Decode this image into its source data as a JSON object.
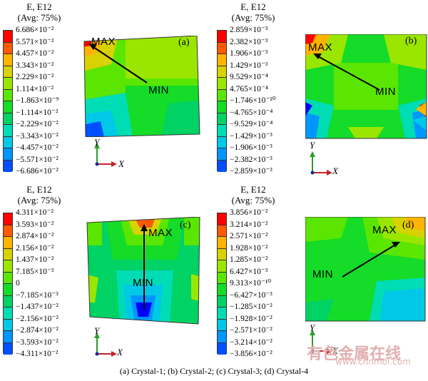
{
  "panels": [
    {
      "id": "a",
      "title_line1": "E, E12",
      "title_line2": "(Avg: 75%)",
      "ticks": [
        "6.686×10⁻²",
        "5.571×10⁻²",
        "4.457×10⁻²",
        "3.343×10⁻²",
        "2.229×10⁻²",
        "1.114×10⁻²",
        "−1.863×10⁻⁹",
        "−1.114×10⁻²",
        "−2.229×10⁻²",
        "−3.343×10⁻²",
        "−4.457×10⁻²",
        "−5.571×10⁻²",
        "−6.686×10⁻²"
      ],
      "max_label": "MAX",
      "min_label": "MIN",
      "panel_label": "(a)",
      "axis_y": "Y",
      "axis_x": "X"
    },
    {
      "id": "b",
      "title_line1": "E, E12",
      "title_line2": "(Avg: 75%)",
      "ticks": [
        "2.859×10⁻³",
        "2.382×10⁻³",
        "1.906×10⁻³",
        "1.429×10⁻³",
        "9.529×10⁻⁴",
        "4.765×10⁻⁴",
        "−1.746×10⁻¹⁰",
        "−4.765×10⁻⁴",
        "−9.529×10⁻⁴",
        "−1.429×10⁻³",
        "−1.906×10⁻³",
        "−2.382×10⁻³",
        "−2.859×10⁻³"
      ],
      "max_label": "MAX",
      "min_label": "MIN",
      "panel_label": "(b)",
      "axis_y": "Y",
      "axis_x": "X"
    },
    {
      "id": "c",
      "title_line1": "E, E12",
      "title_line2": "(Avg: 75%)",
      "ticks": [
        "4.311×10⁻²",
        "3.593×10⁻²",
        "2.874×10⁻²",
        "2.156×10⁻²",
        "1.437×10⁻²",
        "7.185×10⁻³",
        "0",
        "−7.185×10⁻³",
        "−1.437×10⁻²",
        "−2.156×10⁻²",
        "−2.874×10⁻²",
        "−3.593×10⁻²",
        "−4.311×10⁻²"
      ],
      "max_label": "MAX",
      "min_label": "MIN",
      "panel_label": "(c)",
      "axis_y": "Y",
      "axis_x": "X"
    },
    {
      "id": "d",
      "title_line1": "E, E12",
      "title_line2": "(Avg: 75%)",
      "ticks": [
        "3.856×10⁻²",
        "3.214×10⁻²",
        "2.571×10⁻²",
        "1.928×10⁻²",
        "1.285×10⁻²",
        "6.427×10⁻³",
        "9.313×10⁻¹⁰",
        "−6.427×10⁻³",
        "−1.285×10⁻²",
        "−1.928×10⁻²",
        "−2.571×10⁻²",
        "−3.214×10⁻²",
        "−3.856×10⁻²"
      ],
      "max_label": "MAX",
      "min_label": "MIN",
      "panel_label": "(d)",
      "axis_y": "Y",
      "axis_x": "X"
    }
  ],
  "legend_colors": [
    "#ff0000",
    "#ff5a00",
    "#ffb400",
    "#d7d200",
    "#9be600",
    "#5ae600",
    "#14dc28",
    "#00d264",
    "#00dcb4",
    "#00c8e6",
    "#0096ff",
    "#0050ff",
    "#0000ff"
  ],
  "caption": "(a) Crystal-1; (b) Crystal-2; (c) Crystal-3; (d) Crystal-4",
  "watermark_cn": "有色金属在线",
  "watermark_url": "www.cnnmol.com"
}
